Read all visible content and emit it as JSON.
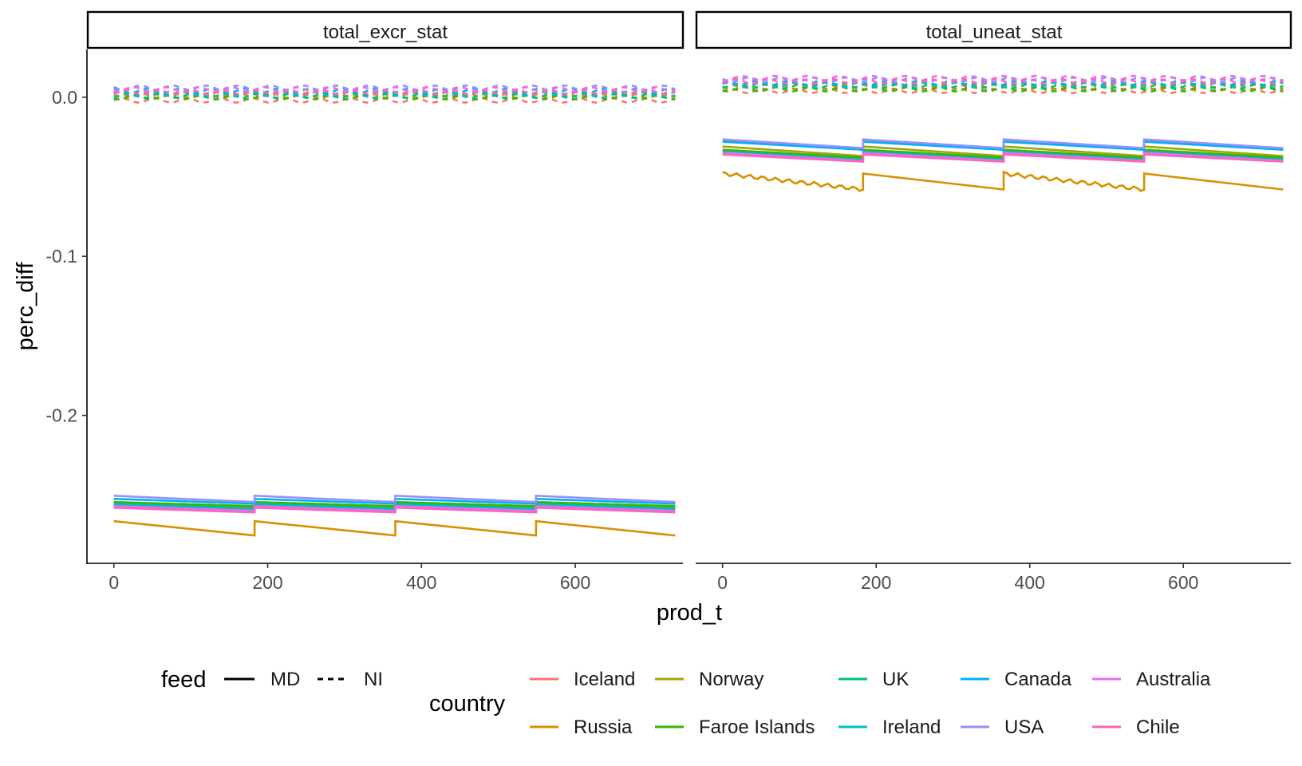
{
  "chart_data": {
    "type": "line",
    "title": "",
    "xlabel": "prod_t",
    "ylabel": "perc_diff",
    "xlim": [
      -35,
      740
    ],
    "ylim": [
      -0.293,
      0.03
    ],
    "x_ticks": [
      0,
      200,
      400,
      600
    ],
    "y_ticks": [
      0.0,
      -0.1,
      -0.2
    ],
    "y_tick_labels": [
      "0.0",
      "-0.1",
      "-0.2"
    ],
    "grid": false,
    "facets": [
      "total_excr_stat",
      "total_uneat_stat"
    ],
    "legend": {
      "position": "bottom",
      "feed": {
        "title": "feed",
        "entries": [
          {
            "label": "MD",
            "linetype": "solid"
          },
          {
            "label": "NI",
            "linetype": "dashed"
          }
        ]
      },
      "country": {
        "title": "country",
        "entries": [
          {
            "label": "Iceland",
            "color": "#F8766D"
          },
          {
            "label": "Russia",
            "color": "#D89000"
          },
          {
            "label": "Norway",
            "color": "#A3A500"
          },
          {
            "label": "Faroe Islands",
            "color": "#39B600"
          },
          {
            "label": "UK",
            "color": "#00BF7D"
          },
          {
            "label": "Ireland",
            "color": "#00BFC4"
          },
          {
            "label": "Canada",
            "color": "#00B0F6"
          },
          {
            "label": "USA",
            "color": "#9590FF"
          },
          {
            "label": "Australia",
            "color": "#E76BF3"
          },
          {
            "label": "Chile",
            "color": "#FF62BC"
          }
        ]
      }
    },
    "series_params": {
      "breakpoints_x": [
        0,
        183,
        366,
        549,
        730
      ],
      "total_excr_stat": {
        "MD": [
          {
            "country": "Iceland",
            "start": -0.2565,
            "end": -0.259
          },
          {
            "country": "Russia",
            "start": -0.2665,
            "end": -0.2755
          },
          {
            "country": "Norway",
            "start": -0.2545,
            "end": -0.2575
          },
          {
            "country": "Faroe Islands",
            "start": -0.2545,
            "end": -0.257
          },
          {
            "country": "UK",
            "start": -0.2555,
            "end": -0.2585
          },
          {
            "country": "Ireland",
            "start": -0.256,
            "end": -0.259
          },
          {
            "country": "Canada",
            "start": -0.2525,
            "end": -0.2555
          },
          {
            "country": "USA",
            "start": -0.2505,
            "end": -0.2545
          },
          {
            "country": "Australia",
            "start": -0.257,
            "end": -0.26
          },
          {
            "country": "Chile",
            "start": -0.258,
            "end": -0.261
          }
        ],
        "NI": [
          {
            "country": "Iceland",
            "value": -0.002
          },
          {
            "country": "Russia",
            "value": 0.002
          },
          {
            "country": "Norway",
            "value": 0.001
          },
          {
            "country": "Faroe Islands",
            "value": 0.0
          },
          {
            "country": "UK",
            "value": 0.001
          },
          {
            "country": "Ireland",
            "value": 0.002
          },
          {
            "country": "Canada",
            "value": 0.004
          },
          {
            "country": "USA",
            "value": 0.006
          },
          {
            "country": "Australia",
            "value": 0.005
          },
          {
            "country": "Chile",
            "value": 0.003
          }
        ]
      },
      "total_uneat_stat": {
        "MD": [
          {
            "country": "Iceland",
            "start": -0.027,
            "end": -0.033
          },
          {
            "country": "Russia",
            "start": -0.048,
            "end": -0.058
          },
          {
            "country": "Norway",
            "start": -0.031,
            "end": -0.037
          },
          {
            "country": "Faroe Islands",
            "start": -0.033,
            "end": -0.038
          },
          {
            "country": "UK",
            "start": -0.034,
            "end": -0.039
          },
          {
            "country": "Ireland",
            "start": -0.0345,
            "end": -0.0395
          },
          {
            "country": "Canada",
            "start": -0.028,
            "end": -0.033
          },
          {
            "country": "USA",
            "start": -0.0265,
            "end": -0.032
          },
          {
            "country": "Australia",
            "start": -0.035,
            "end": -0.04
          },
          {
            "country": "Chile",
            "start": -0.036,
            "end": -0.0405
          }
        ],
        "NI": [
          {
            "country": "Iceland",
            "value": 0.004
          },
          {
            "country": "Russia",
            "value": 0.008
          },
          {
            "country": "Norway",
            "value": 0.006
          },
          {
            "country": "Faroe Islands",
            "value": 0.005
          },
          {
            "country": "UK",
            "value": 0.007
          },
          {
            "country": "Ireland",
            "value": 0.008
          },
          {
            "country": "Canada",
            "value": 0.009
          },
          {
            "country": "USA",
            "value": 0.011
          },
          {
            "country": "Australia",
            "value": 0.012
          },
          {
            "country": "Chile",
            "value": 0.01
          }
        ]
      }
    }
  }
}
